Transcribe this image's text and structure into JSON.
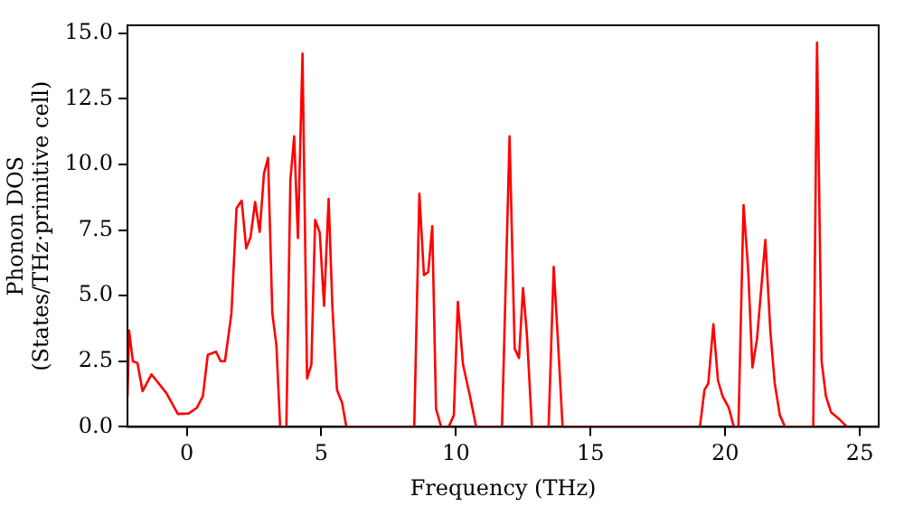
{
  "chart_data": {
    "type": "line",
    "xlabel": "Frequency (THz)",
    "ylabel": "Phonon DOS\n(States/THz·primitive cell)",
    "x": [
      -2.2,
      -2.14,
      -2.0,
      -1.83,
      -1.64,
      -1.31,
      -0.76,
      -0.33,
      0.07,
      0.38,
      0.6,
      0.78,
      1.09,
      1.26,
      1.42,
      1.66,
      1.85,
      2.04,
      2.21,
      2.37,
      2.54,
      2.71,
      2.87,
      3.02,
      3.18,
      3.33,
      3.47,
      3.7,
      3.85,
      3.99,
      4.13,
      4.3,
      4.47,
      4.63,
      4.77,
      4.94,
      5.1,
      5.27,
      5.41,
      5.58,
      5.77,
      5.93,
      8.45,
      8.64,
      8.81,
      8.97,
      9.12,
      9.26,
      9.45,
      9.73,
      9.92,
      10.07,
      10.26,
      10.52,
      10.75,
      11.71,
      11.99,
      12.18,
      12.34,
      12.49,
      12.63,
      12.82,
      13.44,
      13.63,
      13.77,
      13.96,
      19.06,
      19.23,
      19.37,
      19.56,
      19.73,
      19.9,
      20.13,
      20.32,
      20.49,
      20.68,
      20.85,
      21.01,
      21.18,
      21.49,
      21.68,
      21.84,
      22.03,
      22.22,
      23.27,
      23.41,
      23.58,
      23.74,
      23.93,
      24.22,
      24.52
    ],
    "series": [
      {
        "color": "#ff0000",
        "values": [
          1.17,
          3.67,
          2.5,
          2.43,
          1.36,
          2.0,
          1.29,
          0.49,
          0.51,
          0.73,
          1.17,
          2.74,
          2.86,
          2.5,
          2.5,
          4.32,
          8.33,
          8.62,
          6.8,
          7.23,
          8.57,
          7.43,
          9.66,
          10.25,
          4.32,
          3.11,
          0,
          0,
          9.42,
          11.07,
          7.19,
          14.22,
          1.84,
          2.38,
          7.89,
          7.4,
          4.61,
          8.69,
          4.56,
          1.41,
          0.92,
          0,
          0,
          8.89,
          5.78,
          5.9,
          7.65,
          0.68,
          0,
          0,
          0.44,
          4.76,
          2.38,
          1.17,
          0,
          0,
          11.07,
          2.98,
          2.62,
          5.29,
          3.59,
          0,
          0,
          6.1,
          3.59,
          0,
          0,
          1.41,
          1.65,
          3.91,
          1.77,
          1.17,
          0.73,
          0,
          0,
          8.45,
          6.02,
          2.26,
          3.35,
          7.12,
          3.59,
          1.65,
          0.44,
          0,
          0,
          14.64,
          2.5,
          1.17,
          0.56,
          0.31,
          0
        ]
      }
    ],
    "xlim": [
      -2.2,
      25.7
    ],
    "ylim": [
      0,
      15.3
    ],
    "xticks": [
      0,
      5,
      10,
      15,
      20,
      25
    ],
    "yticks": [
      {
        "value": 0,
        "label": "0.0"
      },
      {
        "value": 2.5,
        "label": "2.5"
      },
      {
        "value": 5,
        "label": "5.0"
      },
      {
        "value": 7.5,
        "label": "7.5"
      },
      {
        "value": 10,
        "label": "10.0"
      },
      {
        "value": 12.5,
        "label": "12.5"
      },
      {
        "value": 15,
        "label": "15.0"
      }
    ],
    "grid": false,
    "legend": false,
    "marker": "none",
    "line_style": "solid"
  }
}
